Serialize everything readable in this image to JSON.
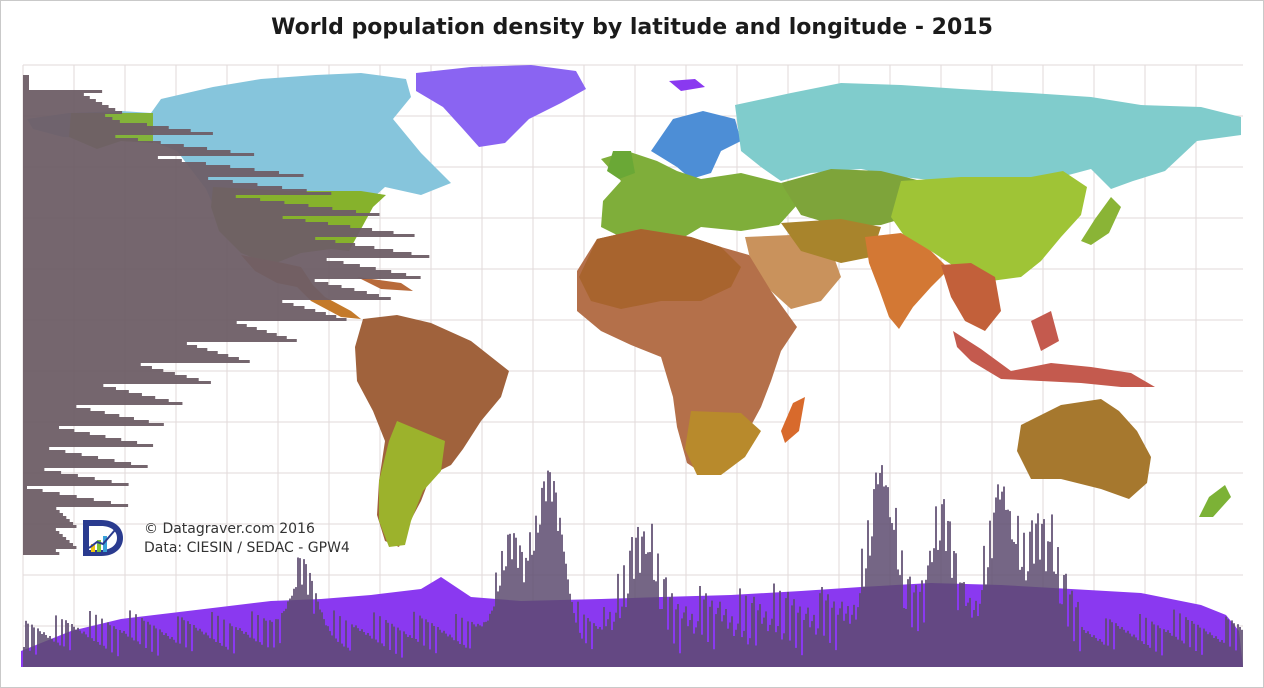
{
  "title": "World population density by latitude and longitude - 2015",
  "credit": {
    "line1": "© Datagraver.com 2016",
    "line2": "Data: CIESIN / SEDAC  - GPW4"
  },
  "colors": {
    "background": "#ffffff",
    "grid": "#e2dada",
    "antarctica": "#8a39f0",
    "greenland": "#8a64f2",
    "latitude_bars": "#6e5e66",
    "longitude_bars": "#5d4b70",
    "logo_blue": "#2a3b8f"
  },
  "chart_data": {
    "type": "map",
    "projection": "equirectangular",
    "marginal_histograms": [
      {
        "position": "left",
        "axis": "latitude"
      },
      {
        "position": "bottom",
        "axis": "longitude"
      }
    ],
    "continents": [
      {
        "name": "North America",
        "color": "#86c5dc"
      },
      {
        "name": "South America",
        "color": "#a0623c"
      },
      {
        "name": "Europe",
        "color": "#7fae3a"
      },
      {
        "name": "Africa",
        "color": "#b4704a"
      },
      {
        "name": "Asia",
        "color": "#9fc436"
      },
      {
        "name": "Oceania",
        "color": "#a6782e"
      },
      {
        "name": "Antarctica",
        "color": "#8a39f0"
      }
    ]
  }
}
